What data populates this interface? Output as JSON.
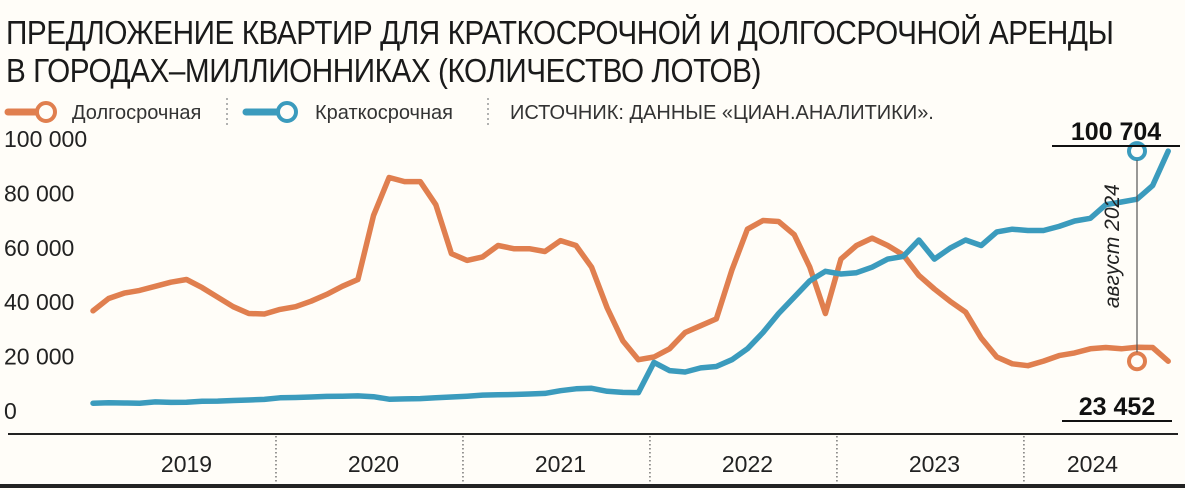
{
  "chart_data": {
    "type": "line",
    "title_line1": "ПРЕДЛОЖЕНИЕ КВАРТИР ДЛЯ КРАТКОСРОЧНОЙ И ДОЛГОСРОЧНОЙ АРЕНДЫ",
    "title_line2": "В ГОРОДАХ–МИЛЛИОННИКАХ (КОЛИЧЕСТВО ЛОТОВ)",
    "source": "ИСТОЧНИК: ДАННЫЕ «ЦИАН.АНАЛИТИКИ».",
    "ylim": [
      0,
      100000
    ],
    "yticks": [
      "0",
      "20 000",
      "40 000",
      "60 000",
      "80 000",
      "100 000"
    ],
    "years": [
      "2019",
      "2020",
      "2021",
      "2022",
      "2023",
      "2024"
    ],
    "x_start": "2019-01",
    "x_end": "2024-08",
    "series": [
      {
        "name": "Долгосрочная",
        "color": "#e07f4f",
        "values": [
          42000,
          46500,
          48500,
          49500,
          51000,
          52500,
          53500,
          50500,
          47000,
          43500,
          41000,
          40800,
          42500,
          43500,
          45500,
          48000,
          51000,
          53500,
          77000,
          91000,
          89500,
          89500,
          81000,
          63000,
          60500,
          61800,
          66000,
          64800,
          64800,
          63800,
          67800,
          66000,
          58000,
          43000,
          31000,
          24000,
          25000,
          28000,
          34000,
          36500,
          39000,
          57000,
          72000,
          75200,
          74800,
          70000,
          58000,
          41000,
          61000,
          66000,
          68700,
          66000,
          62500,
          55000,
          50000,
          45500,
          41500,
          32000,
          25000,
          22500,
          21800,
          23500,
          25500,
          26500,
          28000,
          28500,
          28000,
          28600,
          28500,
          23452
        ]
      },
      {
        "name": "Краткосрочная",
        "color": "#3b9bbd",
        "values": [
          8000,
          8200,
          8100,
          8000,
          8500,
          8300,
          8400,
          8700,
          8800,
          9000,
          9200,
          9400,
          10000,
          10100,
          10300,
          10500,
          10600,
          10700,
          10400,
          9500,
          9600,
          9700,
          10000,
          10300,
          10600,
          11000,
          11100,
          11200,
          11400,
          11600,
          12600,
          13300,
          13500,
          12400,
          12000,
          11900,
          23000,
          20000,
          19500,
          21000,
          21500,
          24000,
          28000,
          34000,
          41000,
          47000,
          53000,
          56500,
          55500,
          56000,
          58000,
          61000,
          62000,
          68000,
          61000,
          65000,
          68000,
          66000,
          71000,
          72000,
          71500,
          71500,
          73000,
          75000,
          76000,
          81000,
          82000,
          83000,
          88000,
          100704
        ]
      }
    ],
    "end_labels": {
      "long": "23 452",
      "short": "100 704"
    },
    "end_note": "август 2024"
  }
}
